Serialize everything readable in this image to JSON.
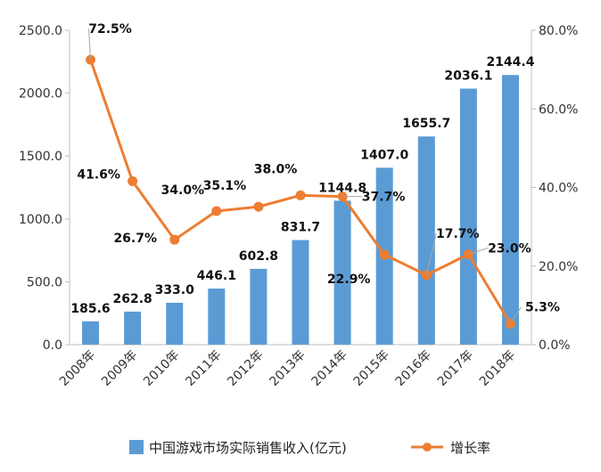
{
  "chart_data": {
    "type": "bar",
    "categories": [
      "2008年",
      "2009年",
      "2010年",
      "2011年",
      "2012年",
      "2013年",
      "2014年",
      "2015年",
      "2016年",
      "2017年",
      "2018年"
    ],
    "series": [
      {
        "name": "中国游戏市场实际销售收入(亿元)",
        "type": "bar",
        "axis": "left",
        "color": "#5b9bd5",
        "values": [
          185.6,
          262.8,
          333.0,
          446.1,
          602.8,
          831.7,
          1144.8,
          1407.0,
          1655.7,
          2036.1,
          2144.4
        ],
        "labels": [
          "185.6",
          "262.8",
          "333.0",
          "446.1",
          "602.8",
          "831.7",
          "1144.8",
          "1407.0",
          "1655.7",
          "2036.1",
          "2144.4"
        ]
      },
      {
        "name": "增长率",
        "type": "line",
        "axis": "right",
        "color": "#ed7d31",
        "values": [
          72.5,
          41.6,
          26.7,
          34.0,
          35.1,
          38.0,
          37.7,
          22.9,
          17.7,
          23.0,
          5.3
        ],
        "labels": [
          "72.5%",
          "41.6%",
          "26.7%",
          "34.0%",
          "35.1%",
          "38.0%",
          "37.7%",
          "22.9%",
          "17.7%",
          "23.0%",
          "5.3%"
        ]
      }
    ],
    "y_left": {
      "range": [
        0,
        2500
      ],
      "ticks": [
        "0.0",
        "500.0",
        "1000.0",
        "1500.0",
        "2000.0",
        "2500.0"
      ]
    },
    "y_right": {
      "range": [
        0,
        80
      ],
      "ticks": [
        "0.0%",
        "20.0%",
        "40.0%",
        "60.0%",
        "80.0%"
      ]
    },
    "grid": false,
    "legend_position": "bottom"
  }
}
